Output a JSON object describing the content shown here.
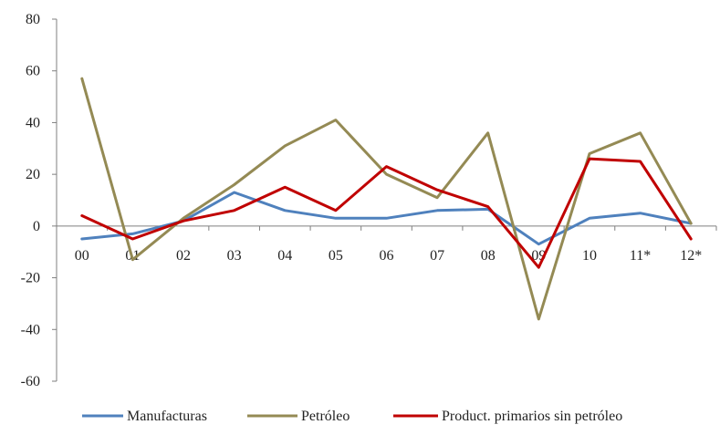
{
  "chart_data": {
    "type": "line",
    "title": "",
    "xlabel": "",
    "ylabel": "",
    "categories": [
      "00",
      "01",
      "02",
      "03",
      "04",
      "05",
      "06",
      "07",
      "08",
      "09",
      "10",
      "11*",
      "12*"
    ],
    "ylim": [
      -60,
      80
    ],
    "yticks": [
      -60,
      -40,
      -20,
      0,
      20,
      40,
      60,
      80
    ],
    "ytick_labels": [
      "-60",
      "-40",
      "-20",
      "0",
      "20",
      "40",
      "60",
      "80"
    ],
    "grid": false,
    "legend_position": "bottom",
    "series": [
      {
        "name": "Manufacturas",
        "color": "#4F81BD",
        "values": [
          -5,
          -3,
          2,
          13,
          6,
          3,
          3,
          6,
          6.5,
          -7,
          3,
          5,
          1
        ]
      },
      {
        "name": "Petróleo",
        "color": "#948A54",
        "values": [
          57,
          -13,
          3,
          16,
          31,
          41,
          20,
          11,
          36,
          -36,
          28,
          36,
          1
        ]
      },
      {
        "name": "Product. primarios sin petróleo",
        "color": "#C00000",
        "values": [
          4,
          -5,
          2,
          6,
          15,
          6,
          23,
          14,
          7.5,
          -16,
          26,
          25,
          -5
        ]
      }
    ]
  }
}
